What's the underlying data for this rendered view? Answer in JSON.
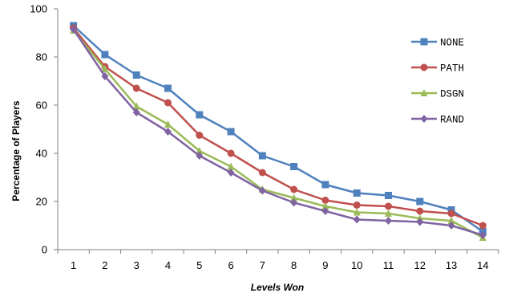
{
  "chart_data": {
    "type": "line",
    "title": "",
    "xlabel": "Levels Won",
    "ylabel": "Percentage of Players",
    "x": [
      1,
      2,
      3,
      4,
      5,
      6,
      7,
      8,
      9,
      10,
      11,
      12,
      13,
      14
    ],
    "ylim": [
      0,
      100
    ],
    "yticks": [
      0,
      20,
      40,
      60,
      80,
      100
    ],
    "grid": false,
    "legend_position": "right",
    "series": [
      {
        "name": "NONE",
        "color": "#4f81bd",
        "marker": "square",
        "values": [
          93,
          81,
          72.5,
          67,
          56,
          49,
          39,
          34.5,
          27,
          23.5,
          22.5,
          20,
          16.5,
          7.5
        ]
      },
      {
        "name": "PATH",
        "color": "#c0504d",
        "marker": "circle",
        "values": [
          92,
          76,
          67,
          61,
          47.5,
          40,
          32,
          25,
          20.5,
          18.5,
          18,
          16,
          15,
          10
        ]
      },
      {
        "name": "DSGN",
        "color": "#9bbb59",
        "marker": "triangle",
        "values": [
          91,
          75,
          59.5,
          52,
          41,
          34.5,
          25,
          21.5,
          18,
          15.5,
          15,
          13,
          12,
          5
        ]
      },
      {
        "name": "RAND",
        "color": "#8064a2",
        "marker": "diamond",
        "values": [
          91.5,
          72,
          57,
          49,
          39,
          32,
          24.5,
          19.5,
          16,
          12.5,
          12,
          11.5,
          10,
          6
        ]
      }
    ]
  }
}
